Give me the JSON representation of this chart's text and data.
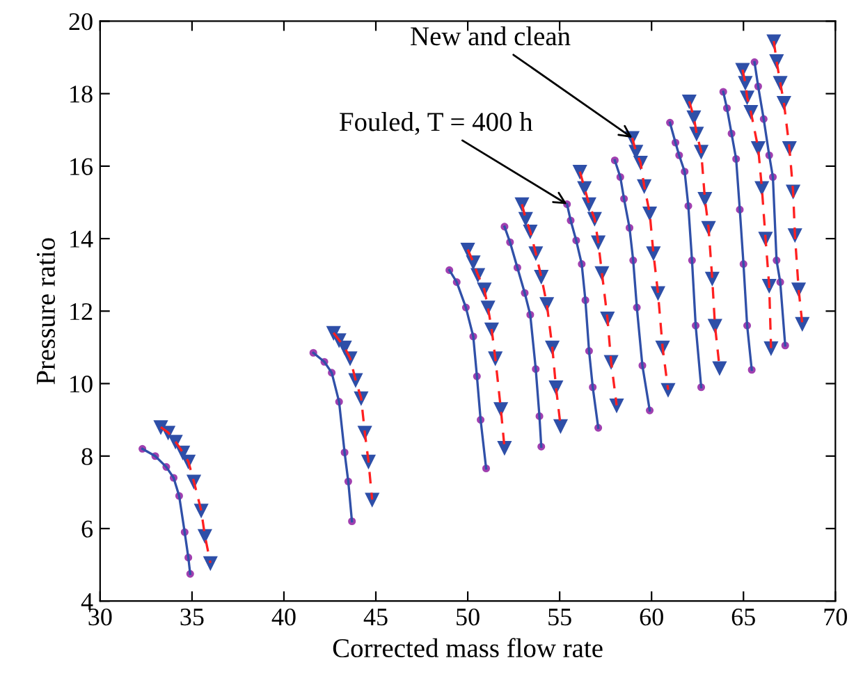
{
  "chart_data": {
    "type": "line",
    "xlabel": "Corrected mass flow rate",
    "ylabel": "Pressure ratio",
    "xlim": [
      30,
      70
    ],
    "xticks": [
      30,
      35,
      40,
      45,
      50,
      55,
      60,
      65,
      70
    ],
    "ylim": [
      4,
      20
    ],
    "yticks": [
      4,
      6,
      8,
      10,
      12,
      14,
      16,
      18,
      20
    ],
    "grid": false,
    "legend": false,
    "annotations": [
      {
        "text": "New and clean",
        "x": 58.95,
        "y": 16.78
      },
      {
        "text": "Fouled, T = 400 h",
        "x": 55.4,
        "y": 14.95
      }
    ],
    "series": [
      {
        "color": "#3050a8",
        "marker": "circle",
        "line_style": "solid",
        "x": [
          32.3,
          33.0,
          33.6,
          34.0,
          34.3,
          34.6,
          34.8,
          34.9
        ],
        "values": [
          8.2,
          8.0,
          7.7,
          7.4,
          6.9,
          5.9,
          5.2,
          4.75
        ]
      },
      {
        "color": "#ff2020",
        "marker": "triangle",
        "line_style": "dashed",
        "x": [
          33.3,
          33.7,
          34.1,
          34.5,
          34.8,
          35.1,
          35.5,
          35.7,
          36.0
        ],
        "values": [
          8.8,
          8.65,
          8.4,
          8.1,
          7.85,
          7.3,
          6.5,
          5.8,
          5.05
        ]
      },
      {
        "color": "#3050a8",
        "marker": "circle",
        "line_style": "solid",
        "x": [
          41.6,
          42.2,
          42.6,
          43.0,
          43.3,
          43.5,
          43.7
        ],
        "values": [
          10.85,
          10.6,
          10.3,
          9.5,
          8.1,
          7.3,
          6.2
        ]
      },
      {
        "color": "#ff2020",
        "marker": "triangle",
        "line_style": "dashed",
        "x": [
          42.7,
          43.0,
          43.3,
          43.6,
          43.9,
          44.2,
          44.4,
          44.6,
          44.8
        ],
        "values": [
          11.4,
          11.2,
          11.0,
          10.7,
          10.1,
          9.6,
          8.65,
          7.85,
          6.8
        ]
      },
      {
        "color": "#3050a8",
        "marker": "circle",
        "line_style": "solid",
        "x": [
          49.0,
          49.4,
          49.9,
          50.3,
          50.5,
          50.7,
          51.0
        ],
        "values": [
          13.13,
          12.8,
          12.1,
          11.3,
          10.2,
          9.0,
          7.66
        ]
      },
      {
        "color": "#ff2020",
        "marker": "triangle",
        "line_style": "dashed",
        "x": [
          50.0,
          50.3,
          50.55,
          50.9,
          51.1,
          51.3,
          51.5,
          51.8,
          52.0
        ],
        "values": [
          13.7,
          13.35,
          13.0,
          12.6,
          12.1,
          11.5,
          10.7,
          9.3,
          8.23
        ]
      },
      {
        "color": "#3050a8",
        "marker": "circle",
        "line_style": "solid",
        "x": [
          52.0,
          52.3,
          52.7,
          53.1,
          53.4,
          53.7,
          53.9,
          54.0
        ],
        "values": [
          14.33,
          13.9,
          13.2,
          12.5,
          11.9,
          10.4,
          9.1,
          8.26
        ]
      },
      {
        "color": "#ff2020",
        "marker": "triangle",
        "line_style": "dashed",
        "x": [
          52.95,
          53.15,
          53.4,
          53.7,
          54.0,
          54.3,
          54.6,
          54.8,
          55.05
        ],
        "values": [
          14.95,
          14.55,
          14.2,
          13.6,
          12.95,
          12.2,
          11.0,
          9.9,
          8.83
        ]
      },
      {
        "color": "#3050a8",
        "marker": "circle",
        "line_style": "solid",
        "x": [
          55.4,
          55.6,
          55.9,
          56.2,
          56.4,
          56.6,
          56.8,
          57.1
        ],
        "values": [
          14.95,
          14.5,
          13.95,
          13.3,
          12.3,
          10.9,
          9.9,
          8.78
        ]
      },
      {
        "color": "#ff2020",
        "marker": "triangle",
        "line_style": "dashed",
        "x": [
          56.1,
          56.35,
          56.6,
          56.9,
          57.1,
          57.3,
          57.6,
          57.8,
          58.1
        ],
        "values": [
          15.85,
          15.4,
          14.95,
          14.55,
          13.9,
          13.05,
          11.8,
          10.6,
          9.4
        ]
      },
      {
        "color": "#3050a8",
        "marker": "circle",
        "line_style": "solid",
        "x": [
          58.0,
          58.3,
          58.5,
          58.8,
          59.0,
          59.2,
          59.5,
          59.9
        ],
        "values": [
          16.16,
          15.7,
          15.1,
          14.3,
          13.4,
          12.1,
          10.5,
          9.26
        ]
      },
      {
        "color": "#ff2020",
        "marker": "triangle",
        "line_style": "dashed",
        "x": [
          58.95,
          59.15,
          59.4,
          59.6,
          59.9,
          60.1,
          60.35,
          60.6,
          60.9
        ],
        "values": [
          16.78,
          16.4,
          16.1,
          15.45,
          14.7,
          13.6,
          12.5,
          11.0,
          9.83
        ]
      },
      {
        "color": "#3050a8",
        "marker": "circle",
        "line_style": "solid",
        "x": [
          61.0,
          61.3,
          61.5,
          61.8,
          62.0,
          62.2,
          62.4,
          62.7
        ],
        "values": [
          17.2,
          16.65,
          16.3,
          15.85,
          14.9,
          13.4,
          11.6,
          9.9
        ]
      },
      {
        "color": "#ff2020",
        "marker": "triangle",
        "line_style": "dashed",
        "x": [
          62.05,
          62.3,
          62.45,
          62.7,
          62.9,
          63.1,
          63.3,
          63.45,
          63.7
        ],
        "values": [
          17.79,
          17.35,
          16.9,
          16.4,
          15.1,
          14.3,
          12.9,
          11.6,
          10.43
        ]
      },
      {
        "color": "#3050a8",
        "marker": "circle",
        "line_style": "solid",
        "x": [
          63.9,
          64.1,
          64.35,
          64.6,
          64.8,
          65.0,
          65.2,
          65.45
        ],
        "values": [
          18.05,
          17.6,
          16.9,
          16.2,
          14.8,
          13.3,
          11.6,
          10.38
        ]
      },
      {
        "color": "#ff2020",
        "marker": "triangle",
        "line_style": "dashed",
        "x": [
          64.95,
          65.1,
          65.2,
          65.4,
          65.8,
          66.0,
          66.2,
          66.4,
          66.5
        ],
        "values": [
          18.66,
          18.3,
          17.9,
          17.5,
          16.5,
          15.4,
          14.0,
          12.7,
          10.98
        ]
      },
      {
        "color": "#3050a8",
        "marker": "circle",
        "line_style": "solid",
        "x": [
          65.6,
          65.8,
          66.1,
          66.4,
          66.6,
          66.8,
          67.0,
          67.27
        ],
        "values": [
          18.87,
          18.2,
          17.3,
          16.3,
          15.7,
          13.4,
          12.8,
          11.05
        ]
      },
      {
        "color": "#ff2020",
        "marker": "triangle",
        "line_style": "dashed",
        "x": [
          66.65,
          66.8,
          67.0,
          67.2,
          67.5,
          67.7,
          67.8,
          68.0,
          68.2
        ],
        "values": [
          19.45,
          18.9,
          18.3,
          17.75,
          16.5,
          15.3,
          14.1,
          12.6,
          11.65
        ]
      }
    ]
  }
}
